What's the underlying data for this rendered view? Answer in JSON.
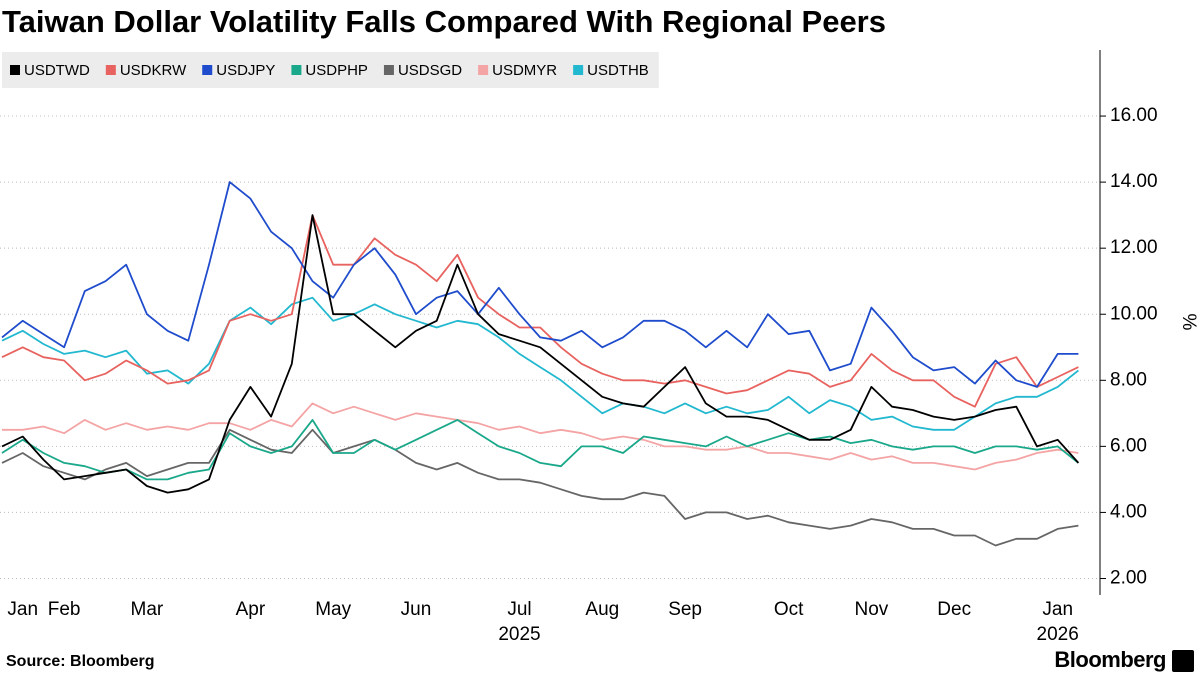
{
  "chart_data": {
    "type": "line",
    "title": "Taiwan Dollar Volatility Falls Compared With Regional Peers",
    "y_label": "%",
    "source": "Source: Bloomberg",
    "logo": "Bloomberg",
    "categories": [
      null,
      "Jan",
      null,
      "Feb",
      null,
      null,
      null,
      "Mar",
      null,
      null,
      null,
      null,
      "Apr",
      null,
      null,
      null,
      "May",
      null,
      null,
      null,
      "Jun",
      null,
      null,
      null,
      null,
      "Jul",
      null,
      null,
      null,
      "Aug",
      null,
      null,
      null,
      "Sep",
      null,
      null,
      null,
      null,
      "Oct",
      null,
      null,
      null,
      "Nov",
      null,
      null,
      null,
      "Dec",
      null,
      null,
      null,
      null,
      "Jan",
      null
    ],
    "year_labels": [
      null,
      null,
      null,
      null,
      null,
      null,
      null,
      null,
      null,
      null,
      null,
      null,
      null,
      null,
      null,
      null,
      null,
      null,
      null,
      null,
      null,
      null,
      null,
      null,
      null,
      "2025",
      null,
      null,
      null,
      null,
      null,
      null,
      null,
      null,
      null,
      null,
      null,
      null,
      null,
      null,
      null,
      null,
      null,
      null,
      null,
      null,
      null,
      null,
      null,
      null,
      null,
      "2026",
      null
    ],
    "ylim": [
      1.5,
      18
    ],
    "yticks": [
      {
        "value": 2,
        "label": "2.00"
      },
      {
        "value": 4,
        "label": "4.00"
      },
      {
        "value": 6,
        "label": "6.00"
      },
      {
        "value": 8,
        "label": "8.00"
      },
      {
        "value": 10,
        "label": "10.00"
      },
      {
        "value": 12,
        "label": "12.00"
      },
      {
        "value": 14,
        "label": "14.00"
      },
      {
        "value": 16,
        "label": "16.00"
      }
    ],
    "grid": true,
    "legend": "top-left",
    "series": [
      {
        "name": "USDTWD",
        "color": "#000000",
        "values": [
          6.0,
          6.3,
          5.6,
          5.0,
          5.1,
          5.2,
          5.3,
          4.8,
          4.6,
          4.7,
          5.0,
          6.8,
          7.8,
          6.9,
          8.5,
          13.0,
          10.0,
          10.0,
          9.5,
          9.0,
          9.5,
          9.8,
          11.5,
          10.0,
          9.4,
          9.2,
          9.0,
          8.5,
          8.0,
          7.5,
          7.3,
          7.2,
          7.8,
          8.4,
          7.3,
          6.9,
          6.9,
          6.8,
          6.5,
          6.2,
          6.2,
          6.5,
          7.8,
          7.2,
          7.1,
          6.9,
          6.8,
          6.9,
          7.1,
          7.2,
          6.0,
          6.2,
          5.5
        ]
      },
      {
        "name": "USDKRW",
        "color": "#e8635f",
        "values": [
          8.7,
          9.0,
          8.7,
          8.6,
          8.0,
          8.2,
          8.6,
          8.3,
          7.9,
          8.0,
          8.3,
          9.8,
          10.0,
          9.8,
          10.0,
          13.0,
          11.5,
          11.5,
          12.3,
          11.8,
          11.5,
          11.0,
          11.8,
          10.5,
          10.0,
          9.6,
          9.6,
          9.0,
          8.5,
          8.2,
          8.0,
          8.0,
          7.9,
          8.0,
          7.8,
          7.6,
          7.7,
          8.0,
          8.3,
          8.2,
          7.8,
          8.0,
          8.8,
          8.3,
          8.0,
          8.0,
          7.5,
          7.2,
          8.5,
          8.7,
          7.8,
          8.1,
          8.4
        ]
      },
      {
        "name": "USDJPY",
        "color": "#1f4ccc",
        "values": [
          9.3,
          9.8,
          9.4,
          9.0,
          10.7,
          11.0,
          11.5,
          10.0,
          9.5,
          9.2,
          11.5,
          14.0,
          13.5,
          12.5,
          12.0,
          11.0,
          10.5,
          11.5,
          12.0,
          11.2,
          10.0,
          10.5,
          10.7,
          10.0,
          10.8,
          10.0,
          9.3,
          9.2,
          9.5,
          9.0,
          9.3,
          9.8,
          9.8,
          9.5,
          9.0,
          9.5,
          9.0,
          10.0,
          9.4,
          9.5,
          8.3,
          8.5,
          10.2,
          9.5,
          8.7,
          8.3,
          8.4,
          7.9,
          8.6,
          8.0,
          7.8,
          8.8,
          8.8
        ]
      },
      {
        "name": "USDPHP",
        "color": "#1aa88a",
        "values": [
          5.8,
          6.2,
          5.8,
          5.5,
          5.4,
          5.2,
          5.3,
          5.0,
          5.0,
          5.2,
          5.3,
          6.4,
          6.0,
          5.8,
          6.0,
          6.8,
          5.8,
          5.8,
          6.2,
          5.9,
          6.2,
          6.5,
          6.8,
          6.4,
          6.0,
          5.8,
          5.5,
          5.4,
          6.0,
          6.0,
          5.8,
          6.3,
          6.2,
          6.1,
          6.0,
          6.3,
          6.0,
          6.2,
          6.4,
          6.2,
          6.3,
          6.1,
          6.2,
          6.0,
          5.9,
          6.0,
          6.0,
          5.8,
          6.0,
          6.0,
          5.9,
          6.0,
          5.5
        ]
      },
      {
        "name": "USDSGD",
        "color": "#666666",
        "values": [
          5.5,
          5.8,
          5.4,
          5.2,
          5.0,
          5.3,
          5.5,
          5.1,
          5.3,
          5.5,
          5.5,
          6.5,
          6.2,
          5.9,
          5.8,
          6.5,
          5.8,
          6.0,
          6.2,
          5.9,
          5.5,
          5.3,
          5.5,
          5.2,
          5.0,
          5.0,
          4.9,
          4.7,
          4.5,
          4.4,
          4.4,
          4.6,
          4.5,
          3.8,
          4.0,
          4.0,
          3.8,
          3.9,
          3.7,
          3.6,
          3.5,
          3.6,
          3.8,
          3.7,
          3.5,
          3.5,
          3.3,
          3.3,
          3.0,
          3.2,
          3.2,
          3.5,
          3.6
        ]
      },
      {
        "name": "USDMYR",
        "color": "#f4a4a4",
        "values": [
          6.5,
          6.5,
          6.6,
          6.4,
          6.8,
          6.5,
          6.7,
          6.5,
          6.6,
          6.5,
          6.7,
          6.7,
          6.5,
          6.8,
          6.6,
          7.3,
          7.0,
          7.2,
          7.0,
          6.8,
          7.0,
          6.9,
          6.8,
          6.7,
          6.5,
          6.6,
          6.4,
          6.5,
          6.4,
          6.2,
          6.3,
          6.2,
          6.0,
          6.0,
          5.9,
          5.9,
          6.0,
          5.8,
          5.8,
          5.7,
          5.6,
          5.8,
          5.6,
          5.7,
          5.5,
          5.5,
          5.4,
          5.3,
          5.5,
          5.6,
          5.8,
          5.9,
          5.8
        ]
      },
      {
        "name": "USDTHB",
        "color": "#22b8cf",
        "values": [
          9.2,
          9.5,
          9.1,
          8.8,
          8.9,
          8.7,
          8.9,
          8.2,
          8.3,
          7.9,
          8.5,
          9.8,
          10.2,
          9.7,
          10.3,
          10.5,
          9.8,
          10.0,
          10.3,
          10.0,
          9.8,
          9.6,
          9.8,
          9.7,
          9.3,
          8.8,
          8.4,
          8.0,
          7.5,
          7.0,
          7.3,
          7.2,
          7.0,
          7.3,
          7.0,
          7.2,
          7.0,
          7.1,
          7.5,
          7.0,
          7.4,
          7.2,
          6.8,
          6.9,
          6.6,
          6.5,
          6.5,
          6.9,
          7.3,
          7.5,
          7.5,
          7.8,
          8.3
        ]
      }
    ]
  }
}
